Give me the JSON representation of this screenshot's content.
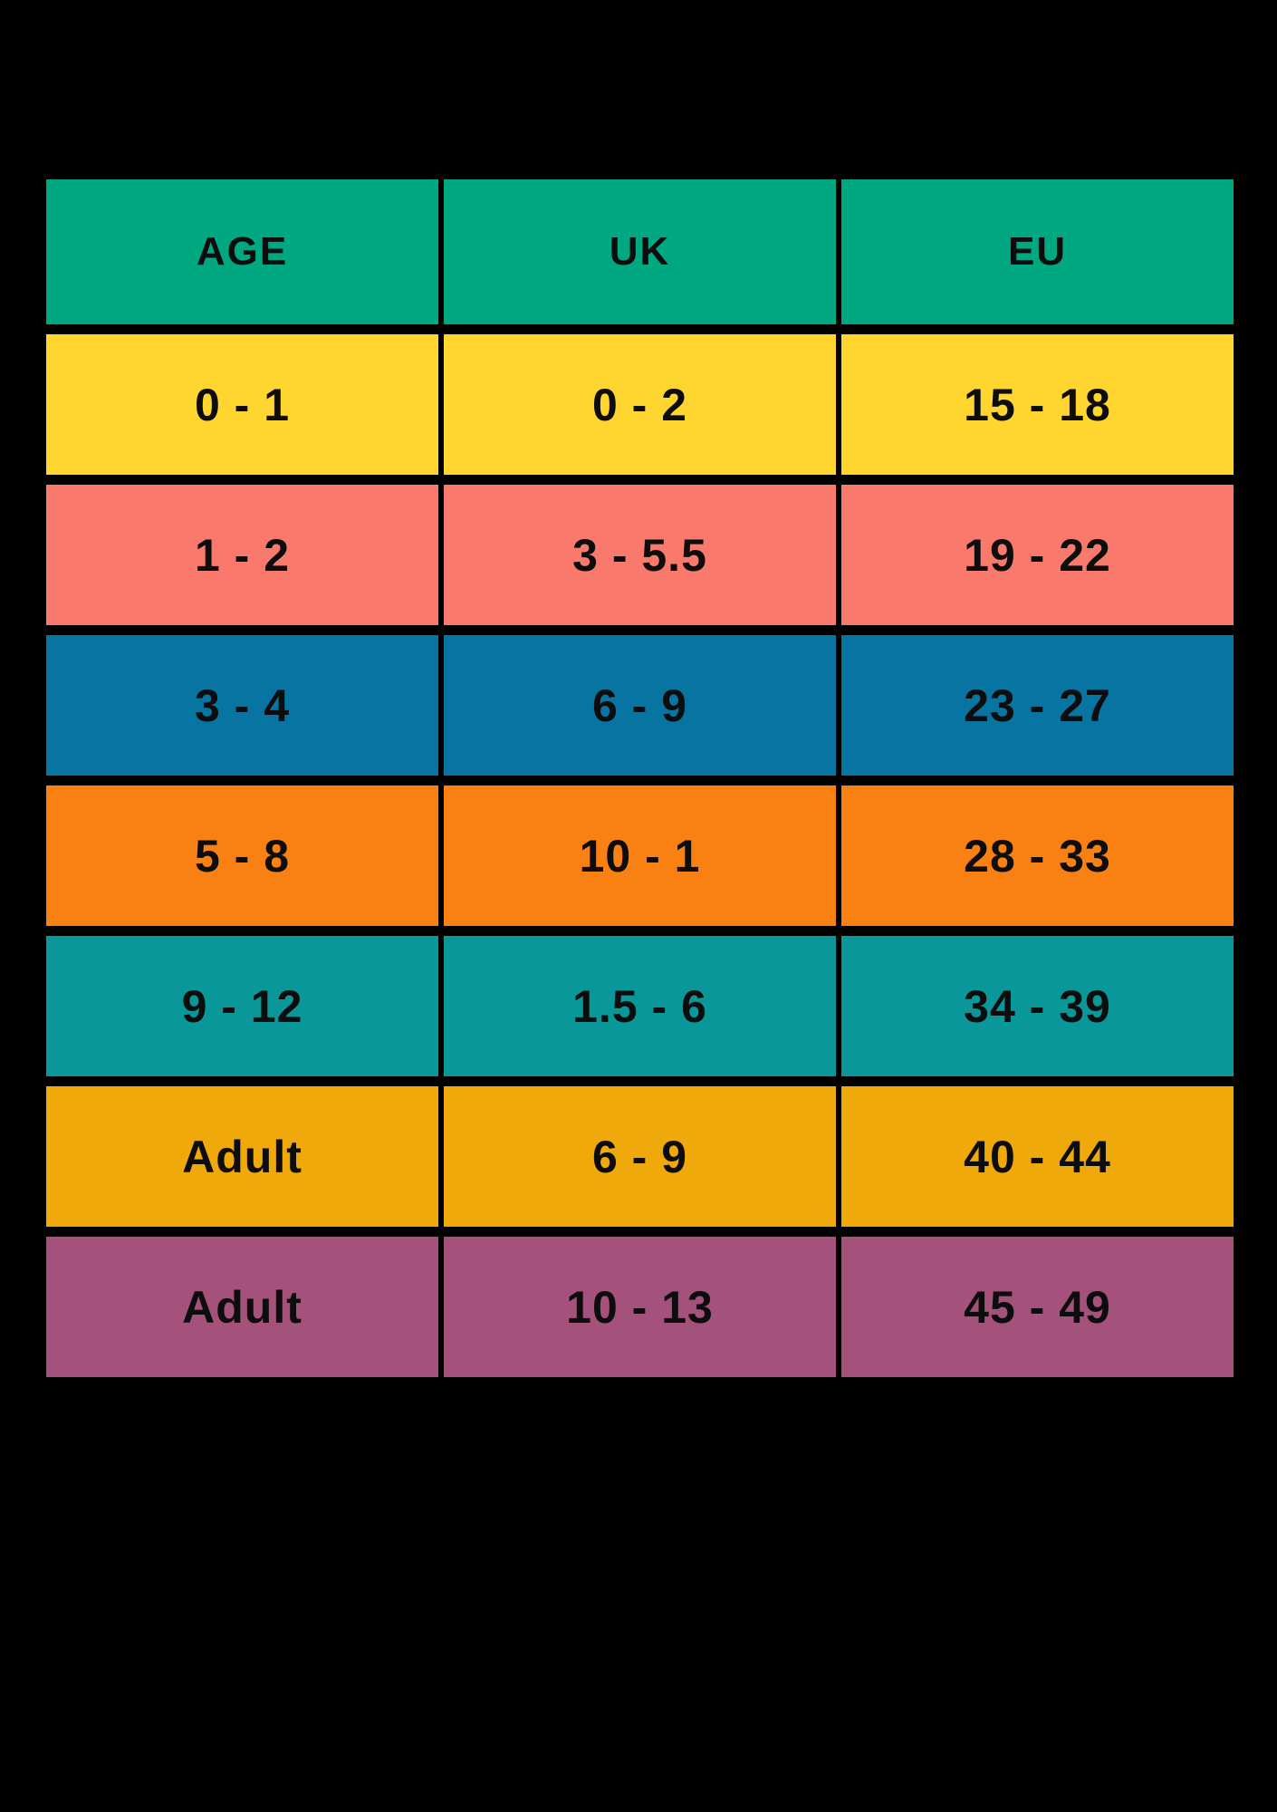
{
  "canvas": {
    "background_color": "#000000",
    "text_color": "#0d0d0d"
  },
  "table": {
    "header_color": "#00A882",
    "columns": [
      {
        "key": "age",
        "label": "AGE"
      },
      {
        "key": "uk",
        "label": "UK"
      },
      {
        "key": "eu",
        "label": "EU"
      }
    ],
    "rows": [
      {
        "color": "#FFD52F",
        "age": "0 - 1",
        "uk": "0 - 2",
        "eu": "15 - 18"
      },
      {
        "color": "#F97A6C",
        "age": "1 - 2",
        "uk": "3 - 5.5",
        "eu": "19 - 22"
      },
      {
        "color": "#0874A2",
        "age": "3 - 4",
        "uk": "6 - 9",
        "eu": "23 - 27"
      },
      {
        "color": "#F98012",
        "age": "5 - 8",
        "uk": "10 - 1",
        "eu": "28 - 33"
      },
      {
        "color": "#0A9799",
        "age": "9 - 12",
        "uk": "1.5 - 6",
        "eu": "34 - 39"
      },
      {
        "color": "#EFA90B",
        "age": "Adult",
        "uk": "6 - 9",
        "eu": "40 - 44"
      },
      {
        "color": "#A4517B",
        "age": "Adult",
        "uk": "10 - 13",
        "eu": "45 - 49"
      }
    ]
  },
  "chart_data": {
    "type": "table",
    "title": "",
    "columns": [
      "AGE",
      "UK",
      "EU"
    ],
    "rows": [
      [
        "0 - 1",
        "0 - 2",
        "15 - 18"
      ],
      [
        "1 - 2",
        "3 - 5.5",
        "19 - 22"
      ],
      [
        "3 - 4",
        "6 - 9",
        "23 - 27"
      ],
      [
        "5 - 8",
        "10 - 1",
        "28 - 33"
      ],
      [
        "9 - 12",
        "1.5 - 6",
        "34 - 39"
      ],
      [
        "Adult",
        "6 - 9",
        "40 - 44"
      ],
      [
        "Adult",
        "10 - 13",
        "45 - 49"
      ]
    ],
    "header_color": "#00A882",
    "row_colors": [
      "#FFD52F",
      "#F97A6C",
      "#0874A2",
      "#F98012",
      "#0A9799",
      "#EFA90B",
      "#A4517B"
    ],
    "grid_color": "#000000",
    "layout": "3-column size-conversion table on black background"
  }
}
